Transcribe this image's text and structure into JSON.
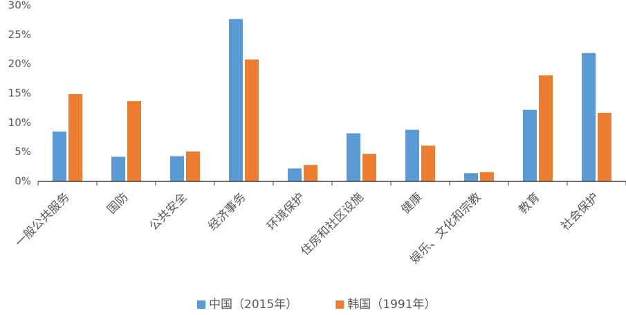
{
  "chart_data": {
    "type": "bar",
    "categories": [
      "一般公共服务",
      "国防",
      "公共安全",
      "经济事务",
      "环境保护",
      "住房和社区设施",
      "健康",
      "娱乐、文化和宗教",
      "教育",
      "社会保护"
    ],
    "series": [
      {
        "name": "中国（2015年）",
        "color": "#5b9bd5",
        "values": [
          8.5,
          4.2,
          4.3,
          27.7,
          2.2,
          8.2,
          8.8,
          1.4,
          12.2,
          21.9
        ]
      },
      {
        "name": "韩国（1991年）",
        "color": "#ed7d31",
        "values": [
          14.9,
          13.7,
          5.1,
          20.8,
          2.8,
          4.7,
          6.1,
          1.6,
          18.1,
          11.7
        ]
      }
    ],
    "ylim": [
      0,
      30
    ],
    "yticks": [
      {
        "value": 0,
        "label": "0%"
      },
      {
        "value": 5,
        "label": "5%"
      },
      {
        "value": 10,
        "label": "10%"
      },
      {
        "value": 15,
        "label": "15%"
      },
      {
        "value": 20,
        "label": "20%"
      },
      {
        "value": 25,
        "label": "25%"
      },
      {
        "value": 30,
        "label": "30%"
      }
    ],
    "legend": "bottom"
  }
}
